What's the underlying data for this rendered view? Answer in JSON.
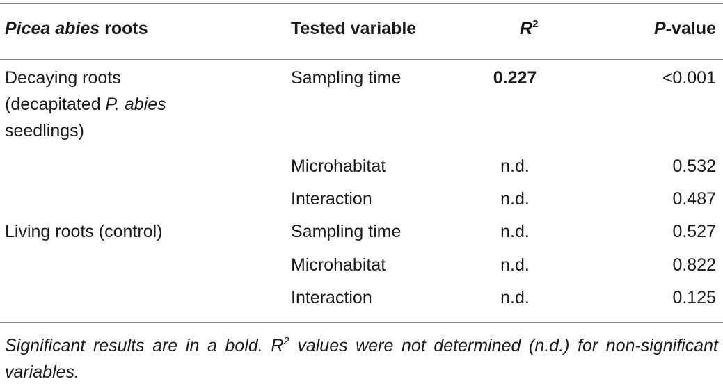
{
  "header": {
    "col1_italic": "Picea abies",
    "col1_rest": " roots",
    "col2": "Tested variable",
    "col3_r": "R",
    "col3_sup": "2",
    "col4_p": "P",
    "col4_rest": "-value"
  },
  "groups": [
    {
      "label_line1": "Decaying roots",
      "label_line2_pre": "(decapitated ",
      "label_line2_italic": "P. abies",
      "label_line3": "seedlings)",
      "rows": [
        {
          "variable": "Sampling time",
          "r2": "0.227",
          "p": "<0.001"
        },
        {
          "variable": "Microhabitat",
          "r2": "n.d.",
          "p": "0.532"
        },
        {
          "variable": "Interaction",
          "r2": "n.d.",
          "p": "0.487"
        }
      ]
    },
    {
      "label_line1": "Living roots (control)",
      "rows": [
        {
          "variable": "Sampling time",
          "r2": "n.d.",
          "p": "0.527"
        },
        {
          "variable": "Microhabitat",
          "r2": "n.d.",
          "p": "0.822"
        },
        {
          "variable": "Interaction",
          "r2": "n.d.",
          "p": "0.125"
        }
      ]
    }
  ],
  "footnote": {
    "part1": "Significant results are in a bold. ",
    "r": "R",
    "sup": "2",
    "part2": " values were not determined (n.d.) for non-significant variables."
  }
}
